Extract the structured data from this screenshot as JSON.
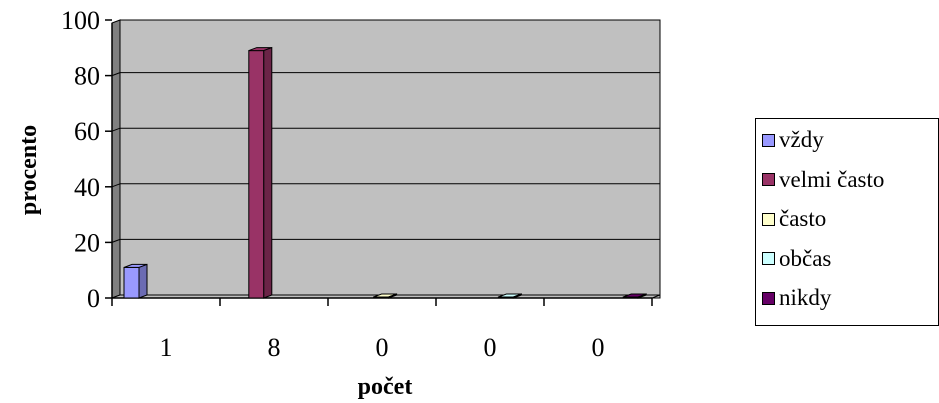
{
  "chart_data": {
    "type": "bar",
    "title": "",
    "xlabel": "počet",
    "ylabel": "procento",
    "ylim": [
      0,
      100
    ],
    "yticks": [
      "0",
      "20",
      "40",
      "60",
      "80",
      "100"
    ],
    "categories": [
      "1",
      "8",
      "0",
      "0",
      "0"
    ],
    "series": [
      {
        "name": "vždy",
        "color": "#9999FF",
        "values": [
          11,
          0,
          0,
          0,
          0
        ]
      },
      {
        "name": "velmi často",
        "color": "#993366",
        "values": [
          0,
          89,
          0,
          0,
          0
        ]
      },
      {
        "name": "často",
        "color": "#FFFFCC",
        "values": [
          0,
          0,
          0,
          0,
          0
        ]
      },
      {
        "name": "občas",
        "color": "#CCFFFF",
        "values": [
          0,
          0,
          0,
          0,
          0
        ]
      },
      {
        "name": "nikdy",
        "color": "#660066",
        "values": [
          0,
          0,
          0,
          0,
          0
        ]
      }
    ],
    "plot_background": "#C0C0C0",
    "grid": true,
    "legend_position": "right"
  }
}
